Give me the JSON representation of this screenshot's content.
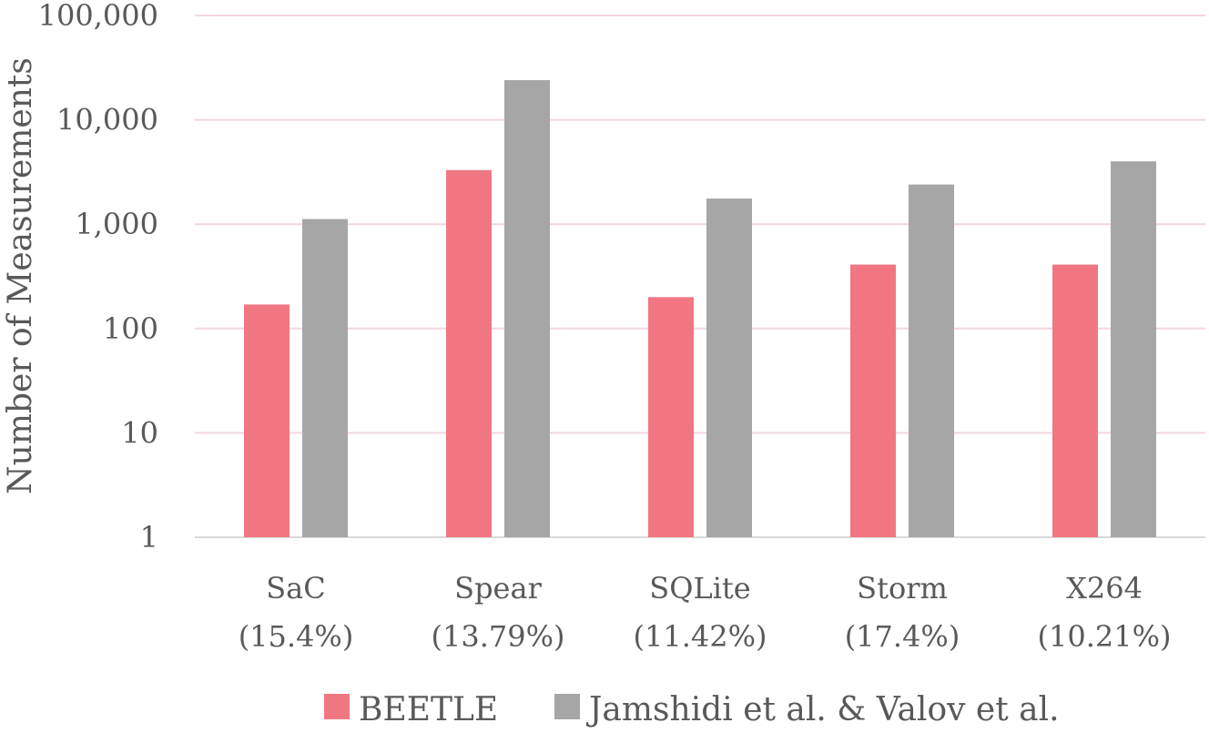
{
  "chart_data": {
    "type": "bar",
    "ylabel": "Number of Measurements",
    "yscale": "log",
    "ylim": [
      1,
      100000
    ],
    "y_ticks": [
      {
        "value": 1,
        "label": "1"
      },
      {
        "value": 10,
        "label": "10"
      },
      {
        "value": 100,
        "label": "100"
      },
      {
        "value": 1000,
        "label": "1,000"
      },
      {
        "value": 10000,
        "label": "10,000"
      },
      {
        "value": 100000,
        "label": "100,000"
      }
    ],
    "categories": [
      {
        "name": "SaC",
        "sub": "(15.4%)"
      },
      {
        "name": "Spear",
        "sub": "(13.79%)"
      },
      {
        "name": "SQLite",
        "sub": "(11.42%)"
      },
      {
        "name": "Storm",
        "sub": "(17.4%)"
      },
      {
        "name": "X264",
        "sub": "(10.21%)"
      }
    ],
    "series": [
      {
        "name": "BEETLE",
        "color": "#f07782",
        "values": [
          170,
          3300,
          200,
          410,
          410
        ]
      },
      {
        "name": "Jamshidi et al. & Valov et al.",
        "color": "#a6a6a6",
        "values": [
          1120,
          24000,
          1760,
          2400,
          4000
        ]
      }
    ],
    "grid": true,
    "legend_position": "bottom"
  }
}
